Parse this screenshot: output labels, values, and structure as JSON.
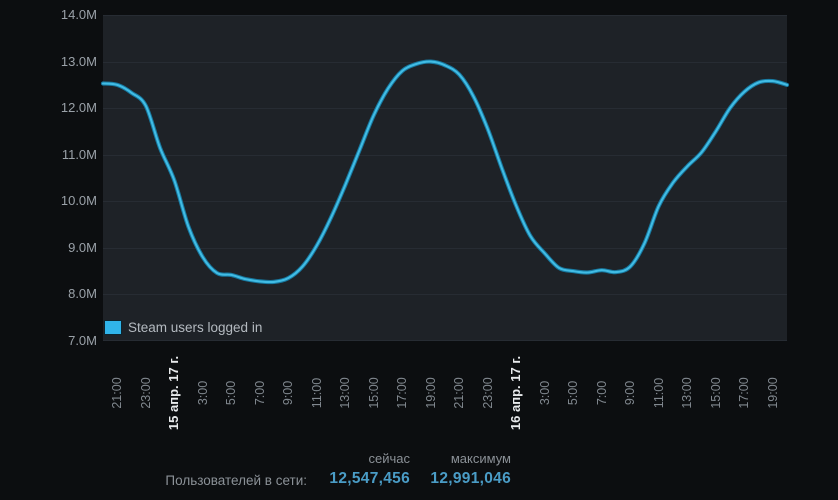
{
  "legend": {
    "label": "Steam users logged in",
    "swatch_color": "#30b4ea"
  },
  "summary": {
    "row_label": "Пользователей в сети:",
    "columns": [
      {
        "header": "сейчас",
        "value": "12,547,456"
      },
      {
        "header": "максимум",
        "value": "12,991,046"
      }
    ]
  },
  "colors": {
    "page_background": "#0c0e10",
    "plot_background": "#1e2227",
    "gridline": "#272c33",
    "line_core": "#41bce4",
    "line_edge": "#17789f",
    "accent_value": "#4a9cc6"
  },
  "chart_data": {
    "type": "line",
    "title": "",
    "xlabel": "",
    "ylabel": "",
    "ylim": [
      7000000,
      14000000
    ],
    "grid": "horizontal-only",
    "legend_position": "bottom-left-inside",
    "y_tick_labels": [
      "14.0M",
      "13.0M",
      "12.0M",
      "11.0M",
      "10.0M",
      "9.0M",
      "8.0M",
      "7.0M"
    ],
    "x_tick_labels": [
      "21:00",
      "23:00",
      "15 апр. 17 г.",
      "3:00",
      "5:00",
      "7:00",
      "9:00",
      "11:00",
      "13:00",
      "15:00",
      "17:00",
      "19:00",
      "21:00",
      "23:00",
      "16 апр. 17 г.",
      "3:00",
      "5:00",
      "7:00",
      "9:00",
      "11:00",
      "13:00",
      "15:00",
      "17:00",
      "19:00"
    ],
    "x_date_tick_indices": [
      2,
      14
    ],
    "x_hours_span": 48,
    "x_first_tick_hour_offset": 1,
    "x_tick_hour_step": 2,
    "series": [
      {
        "name": "Steam users logged in",
        "unit": "millions of users",
        "sampling": "hourly",
        "values_millions_hourly": [
          12.53,
          12.5,
          12.33,
          12.05,
          11.15,
          10.45,
          9.45,
          8.8,
          8.46,
          8.42,
          8.33,
          8.28,
          8.27,
          8.35,
          8.6,
          9.05,
          9.65,
          10.35,
          11.1,
          11.85,
          12.42,
          12.8,
          12.95,
          13.0,
          12.92,
          12.72,
          12.25,
          11.55,
          10.7,
          9.9,
          9.25,
          8.88,
          8.57,
          8.5,
          8.47,
          8.52,
          8.48,
          8.6,
          9.1,
          9.9,
          10.4,
          10.75,
          11.05,
          11.5,
          12.0,
          12.35,
          12.55,
          12.58,
          12.5
        ],
        "current_value": 12547456,
        "max_value": 12991046
      }
    ]
  }
}
